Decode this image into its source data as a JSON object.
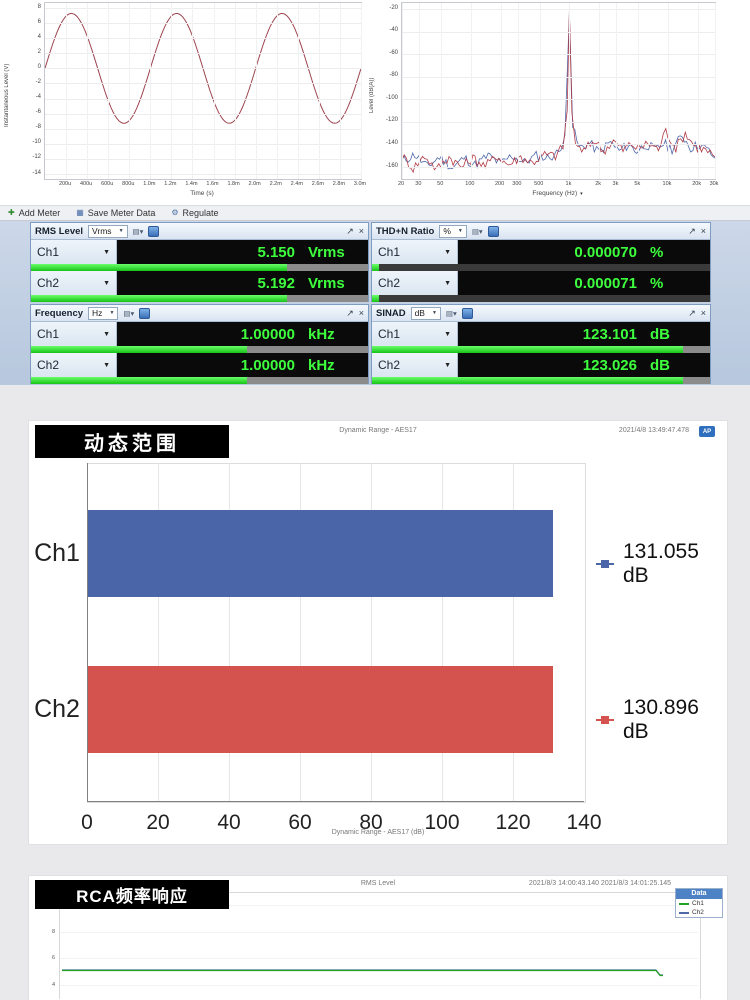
{
  "colors": {
    "value_green": "#3dff3d",
    "bar_fill_green": "#27c927",
    "meter_border": "#7e9bc0",
    "accent_blue": "#4d82c4",
    "bar_ch1": "#4a66a8",
    "bar_ch2": "#d4534e",
    "trace_red": "#b23b47",
    "trace_blue": "#4f68aa",
    "tag_black": "#000000"
  },
  "toolbar": {
    "items": [
      {
        "label": "Add Meter",
        "icon": "add-meter-icon",
        "glyph": "✚",
        "glyph_color": "#2e8b2e"
      },
      {
        "label": "Save Meter Data",
        "icon": "save-meter-data-icon",
        "glyph": "▦",
        "glyph_color": "#4a6fa5"
      },
      {
        "label": "Regulate",
        "icon": "regulate-icon",
        "glyph": "⚙",
        "glyph_color": "#4a6fa5"
      }
    ]
  },
  "meters": {
    "header_icons": {
      "display_mode": "▤▾",
      "popout": "↗",
      "close": "×"
    },
    "channel_caret": "▼",
    "panels": [
      {
        "title": "RMS Level",
        "unit": "Vrms",
        "track": "#8b8b8b",
        "channels": [
          {
            "label": "Ch1",
            "value": "5.150",
            "unit": "Vrms",
            "bar_pct": 76
          },
          {
            "label": "Ch2",
            "value": "5.192",
            "unit": "Vrms",
            "bar_pct": 76
          }
        ]
      },
      {
        "title": "THD+N Ratio",
        "unit": "%",
        "track": "#3a3a3a",
        "channels": [
          {
            "label": "Ch1",
            "value": "0.000070",
            "unit": "%",
            "bar_pct": 2
          },
          {
            "label": "Ch2",
            "value": "0.000071",
            "unit": "%",
            "bar_pct": 2
          }
        ]
      },
      {
        "title": "Frequency",
        "unit": "Hz",
        "track": "#8b8b8b",
        "channels": [
          {
            "label": "Ch1",
            "value": "1.00000",
            "unit": "kHz",
            "bar_pct": 64
          },
          {
            "label": "Ch2",
            "value": "1.00000",
            "unit": "kHz",
            "bar_pct": 64
          }
        ]
      },
      {
        "title": "SINAD",
        "unit": "dB",
        "track": "#8b8b8b",
        "channels": [
          {
            "label": "Ch1",
            "value": "123.101",
            "unit": "dB",
            "bar_pct": 92
          },
          {
            "label": "Ch2",
            "value": "123.026",
            "unit": "dB",
            "bar_pct": 92
          }
        ]
      }
    ]
  },
  "sections": {
    "dynamic_range": {
      "tag": "动态范围",
      "timestamp": "2021/4/8 13:49:47.478",
      "logo": "AP"
    },
    "rca": {
      "tag": "RCA频率响应",
      "timestamp": "2021/8/3 14:00:43.140   2021/8/3 14:01:25.145",
      "legend": {
        "title": "Data",
        "items": [
          {
            "label": "Ch1",
            "color": "#21a321"
          },
          {
            "label": "Ch2",
            "color": "#4f68aa"
          }
        ]
      }
    }
  },
  "chart_data": [
    {
      "id": "scope",
      "type": "line",
      "title": "",
      "ylabel": "Instantaneous Level (V)",
      "xlabel": "Time (s)",
      "ylim": [
        -14,
        8
      ],
      "y_ticks": [
        8,
        6,
        4,
        2,
        0,
        -2,
        -4,
        -6,
        -8,
        -10,
        -12,
        -14
      ],
      "x_ticks": [
        {
          "label": "200u",
          "t": 0.0002
        },
        {
          "label": "400u",
          "t": 0.0004
        },
        {
          "label": "600u",
          "t": 0.0006
        },
        {
          "label": "800u",
          "t": 0.0008
        },
        {
          "label": "1.0m",
          "t": 0.001
        },
        {
          "label": "1.2m",
          "t": 0.0012
        },
        {
          "label": "1.4m",
          "t": 0.0014
        },
        {
          "label": "1.6m",
          "t": 0.0016
        },
        {
          "label": "1.8m",
          "t": 0.0018
        },
        {
          "label": "2.0m",
          "t": 0.002
        },
        {
          "label": "2.2m",
          "t": 0.0022
        },
        {
          "label": "2.4m",
          "t": 0.0024
        },
        {
          "label": "2.6m",
          "t": 0.0026
        },
        {
          "label": "2.8m",
          "t": 0.0028
        },
        {
          "label": "3.0m",
          "t": 0.003
        }
      ],
      "x_range_s": [
        0,
        0.003
      ],
      "signal": {
        "shape": "sine",
        "frequency_hz": 1000,
        "amplitude_v": 7.28,
        "offset_v": 0
      },
      "series": [
        {
          "name": "Ch1",
          "color": "#9d4550"
        }
      ]
    },
    {
      "id": "fft",
      "type": "line",
      "x_scale": "log",
      "ylabel": "Level (dB(A))",
      "xlabel": "Frequency (Hz)",
      "ylim": [
        -170,
        -20
      ],
      "y_ticks": [
        -20,
        -40,
        -60,
        -80,
        -100,
        -120,
        -140,
        -160
      ],
      "x_ticks": [
        {
          "label": "20",
          "f": 20
        },
        {
          "label": "30",
          "f": 30
        },
        {
          "label": "50",
          "f": 50
        },
        {
          "label": "100",
          "f": 100
        },
        {
          "label": "200",
          "f": 200
        },
        {
          "label": "300",
          "f": 300
        },
        {
          "label": "500",
          "f": 500
        },
        {
          "label": "1k",
          "f": 1000
        },
        {
          "label": "2k",
          "f": 2000
        },
        {
          "label": "3k",
          "f": 3000
        },
        {
          "label": "5k",
          "f": 5000
        },
        {
          "label": "10k",
          "f": 10000
        },
        {
          "label": "20k",
          "f": 20000
        },
        {
          "label": "30k",
          "f": 30000
        }
      ],
      "x_range_hz": [
        20,
        30000
      ],
      "series": [
        {
          "name": "Ch2",
          "color": "#4f68aa",
          "anchors": [
            [
              20,
              -155
            ],
            [
              27,
              -149
            ],
            [
              36,
              -160
            ],
            [
              48,
              -151
            ],
            [
              65,
              -161
            ],
            [
              85,
              -152
            ],
            [
              110,
              -158
            ],
            [
              150,
              -150
            ],
            [
              200,
              -157
            ],
            [
              260,
              -150
            ],
            [
              350,
              -156
            ],
            [
              460,
              -150
            ],
            [
              600,
              -152
            ],
            [
              780,
              -147
            ],
            [
              900,
              -130
            ],
            [
              1000,
              -24
            ],
            [
              1080,
              -125
            ],
            [
              1250,
              -143
            ],
            [
              1600,
              -139
            ],
            [
              2000,
              -147
            ],
            [
              2600,
              -138
            ],
            [
              3200,
              -146
            ],
            [
              4000,
              -140
            ],
            [
              4800,
              -146
            ],
            [
              6000,
              -140
            ],
            [
              7500,
              -145
            ],
            [
              9000,
              -139
            ],
            [
              11000,
              -144
            ],
            [
              14000,
              -132
            ],
            [
              17000,
              -143
            ],
            [
              21000,
              -140
            ],
            [
              26000,
              -146
            ],
            [
              30000,
              -152
            ]
          ]
        },
        {
          "name": "Ch1",
          "color": "#b23b47",
          "anchors": [
            [
              20,
              -150
            ],
            [
              26,
              -161
            ],
            [
              34,
              -150
            ],
            [
              45,
              -162
            ],
            [
              60,
              -151
            ],
            [
              80,
              -160
            ],
            [
              105,
              -152
            ],
            [
              140,
              -159
            ],
            [
              185,
              -150
            ],
            [
              240,
              -158
            ],
            [
              320,
              -151
            ],
            [
              420,
              -156
            ],
            [
              560,
              -149
            ],
            [
              720,
              -150
            ],
            [
              860,
              -142
            ],
            [
              950,
              -110
            ],
            [
              1000,
              -21
            ],
            [
              1060,
              -112
            ],
            [
              1150,
              -140
            ],
            [
              1400,
              -146
            ],
            [
              1800,
              -136
            ],
            [
              2200,
              -146
            ],
            [
              2800,
              -137
            ],
            [
              3500,
              -145
            ],
            [
              4200,
              -139
            ],
            [
              5000,
              -144
            ],
            [
              6300,
              -139
            ],
            [
              8000,
              -144
            ],
            [
              9500,
              -128
            ],
            [
              12000,
              -143
            ],
            [
              15000,
              -130
            ],
            [
              19000,
              -142
            ],
            [
              24000,
              -145
            ],
            [
              30000,
              -151
            ]
          ]
        }
      ]
    },
    {
      "id": "dynamic_range",
      "type": "bar",
      "orientation": "horizontal",
      "title": "Dynamic Range - AES17",
      "xlabel": "Dynamic Range - AES17 (dB)",
      "categories": [
        "Ch1",
        "Ch2"
      ],
      "values": [
        131.055,
        130.896
      ],
      "value_labels": [
        "131.055 dB",
        "130.896 dB"
      ],
      "colors": [
        "#4a66a8",
        "#d4534e"
      ],
      "xlim": [
        0,
        140
      ],
      "x_ticks": [
        0,
        20,
        40,
        60,
        80,
        100,
        120,
        140
      ]
    },
    {
      "id": "rca",
      "type": "line",
      "title": "RMS Level",
      "ylim_visible": [
        3,
        11
      ],
      "y_ticks": [
        10,
        8,
        6,
        4
      ],
      "series": [
        {
          "name": "Ch1",
          "color": "#21a321",
          "value_vrms": 5.15
        },
        {
          "name": "Ch2",
          "color": "#4f68aa",
          "value_vrms": 5.192
        }
      ]
    }
  ]
}
